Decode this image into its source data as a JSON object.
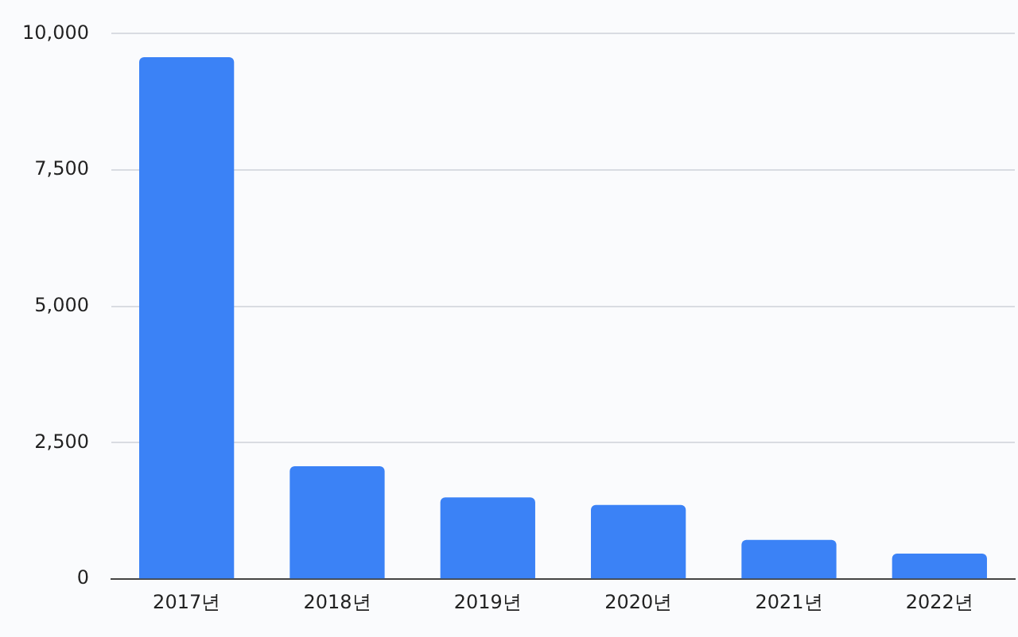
{
  "chart_data": {
    "type": "bar",
    "categories": [
      "2017년",
      "2018년",
      "2019년",
      "2020년",
      "2021년",
      "2022년"
    ],
    "values": [
      9570,
      2070,
      1500,
      1360,
      720,
      470
    ],
    "color": "#3b82f6",
    "ylim": [
      0,
      10000
    ],
    "yticks": [
      0,
      {
        "value": 2500,
        "label": "2,500"
      },
      {
        "value": 5000,
        "label": "5,000"
      },
      {
        "value": 7500,
        "label": "7,500"
      },
      {
        "value": 10000,
        "label": "10,000"
      }
    ],
    "grid": "y",
    "legend": false
  }
}
